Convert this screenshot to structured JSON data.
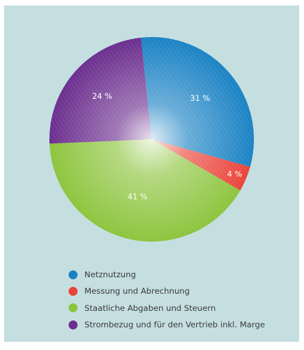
{
  "chart_data": {
    "type": "pie",
    "categories": [
      "Netznutzung",
      "Messung und Abrechnung",
      "Staatliche Abgaben und Steuern",
      "Strombezug und für den Vertrieb inkl. Marge"
    ],
    "values": [
      31,
      4,
      41,
      24
    ],
    "labels": [
      "31 %",
      "4 %",
      "41 %",
      "24 %"
    ],
    "colors": [
      "#1a82c4",
      "#ea4238",
      "#8cc43c",
      "#6b2e8e"
    ],
    "legend": "bottom"
  },
  "style": {
    "panel_background": "#c5dfe1"
  }
}
